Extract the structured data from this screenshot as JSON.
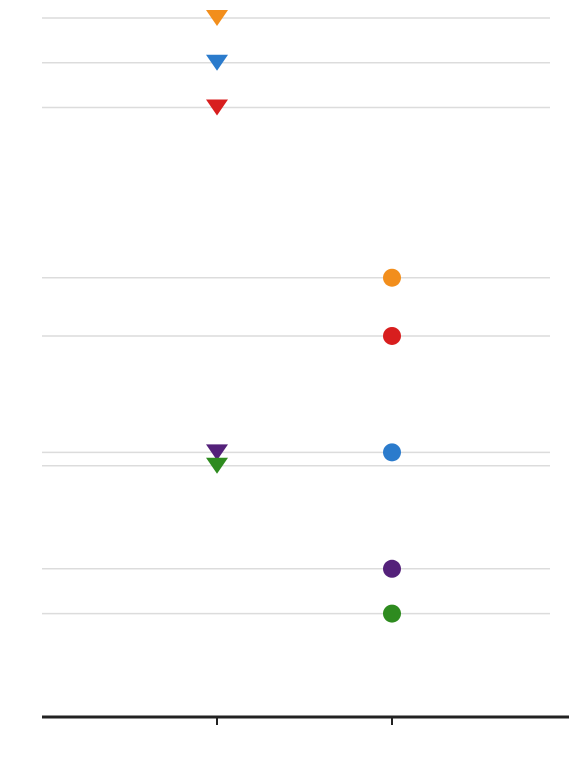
{
  "chart_data": {
    "type": "scatter",
    "title": "",
    "xlabel": "",
    "ylabel": "",
    "categories": [
      "",
      ""
    ],
    "series": [
      {
        "color": "#f28e1c",
        "points": [
          {
            "category": 0,
            "marker": "triangle-down",
            "y": 9.2
          },
          {
            "category": 1,
            "marker": "circle",
            "y": 6.3
          }
        ]
      },
      {
        "color": "#2b7bcc",
        "points": [
          {
            "category": 0,
            "marker": "triangle-down",
            "y": 8.7
          },
          {
            "category": 1,
            "marker": "circle",
            "y": 4.35
          }
        ]
      },
      {
        "color": "#d81e1e",
        "points": [
          {
            "category": 0,
            "marker": "triangle-down",
            "y": 8.2
          },
          {
            "category": 1,
            "marker": "circle",
            "y": 5.65
          }
        ]
      },
      {
        "color": "#54217a",
        "points": [
          {
            "category": 0,
            "marker": "triangle-down",
            "y": 4.35
          },
          {
            "category": 1,
            "marker": "circle",
            "y": 3.05
          }
        ]
      },
      {
        "color": "#2e8b1f",
        "points": [
          {
            "category": 0,
            "marker": "triangle-down",
            "y": 4.2
          },
          {
            "category": 1,
            "marker": "circle",
            "y": 2.55
          }
        ]
      }
    ],
    "ylim": [
      1.92,
      9.2
    ],
    "grid": true,
    "legend": "none"
  }
}
